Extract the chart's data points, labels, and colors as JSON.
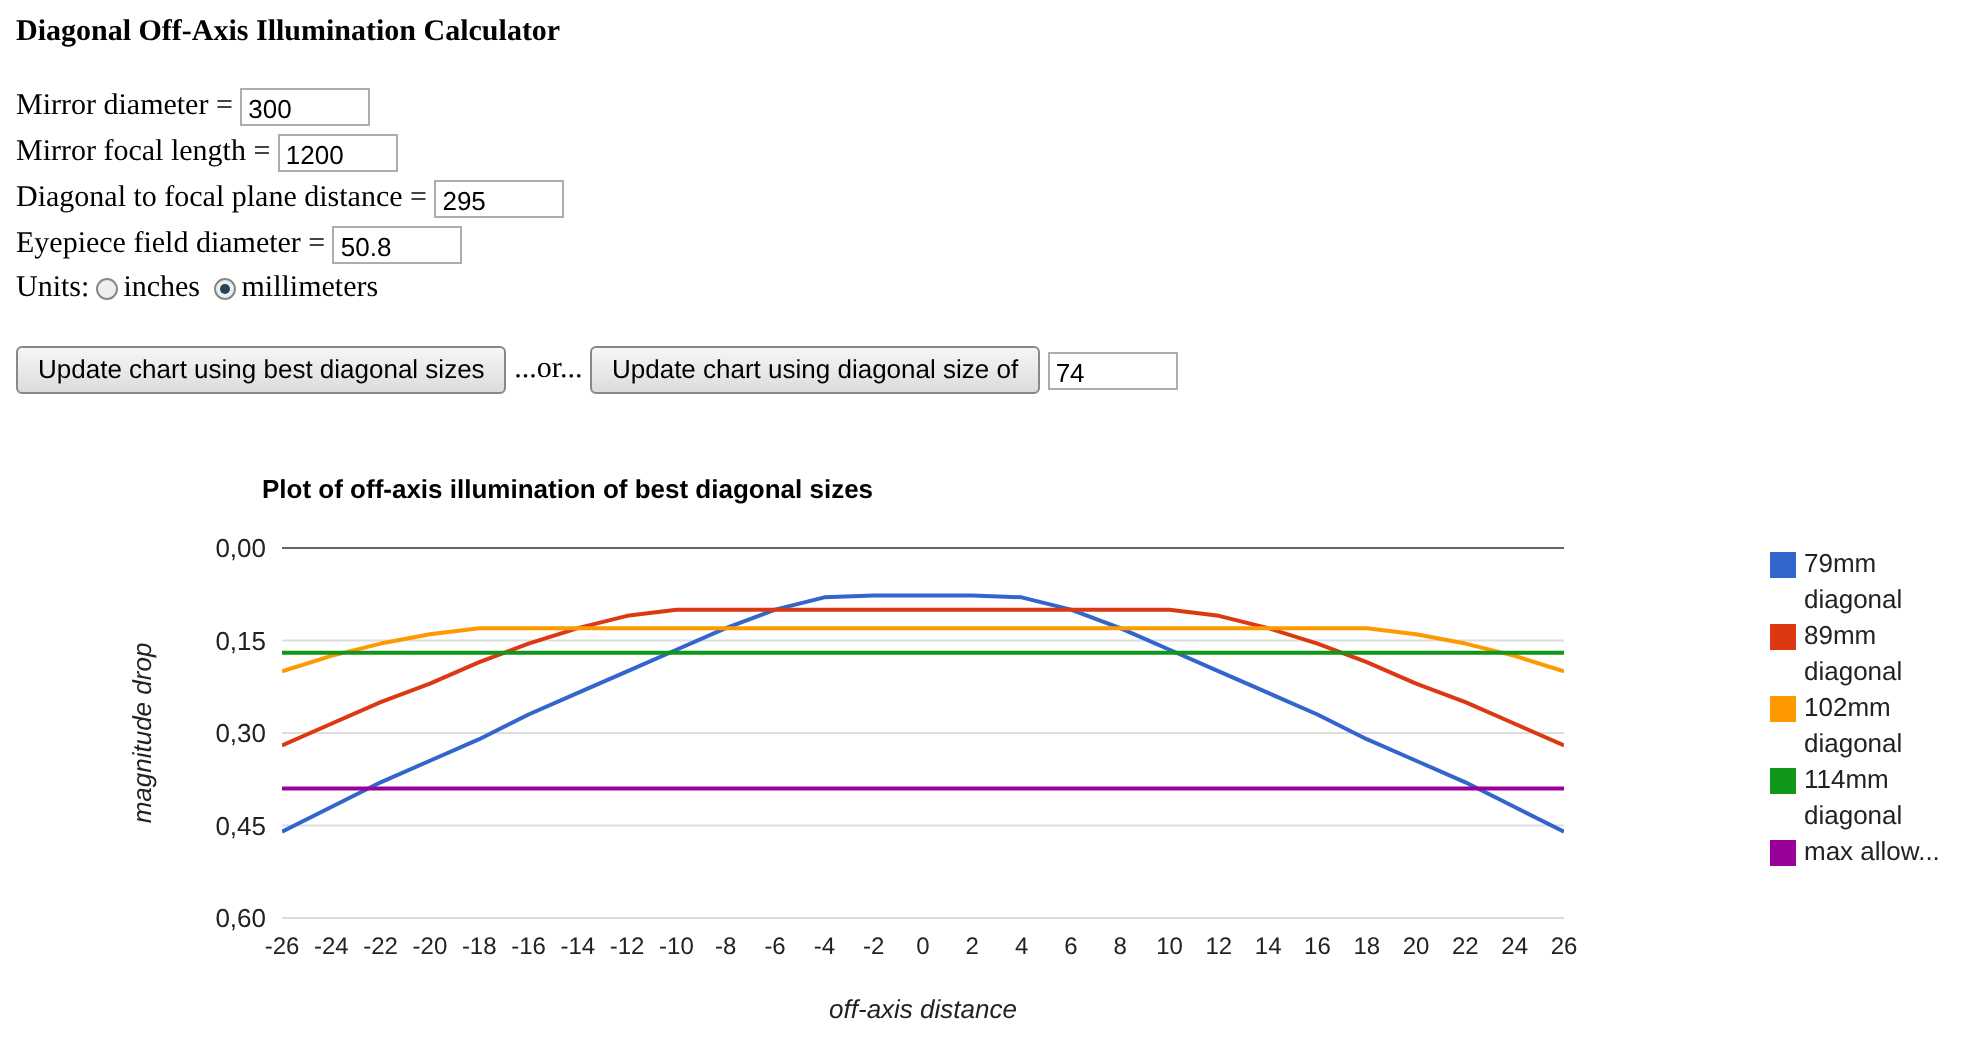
{
  "chart_data": {
    "type": "line",
    "title": "Plot of off-axis illumination of best diagonal sizes",
    "xlabel": "off-axis distance",
    "ylabel": "magnitude drop",
    "annotations": [
      "Diagonal Off-Axis Illumination Calculator",
      "Mirror diameter =",
      "300",
      "Mirror focal length =",
      "1200",
      "Diagonal to focal plane distance =",
      "295",
      "Eyepiece field diameter =",
      "50.8",
      "Units:",
      "inches",
      "millimeters",
      "Update chart using best diagonal sizes",
      "...or...",
      "Update chart using diagonal size of",
      "74"
    ],
    "x": [
      -26,
      -24,
      -22,
      -20,
      -18,
      -16,
      -14,
      -12,
      -10,
      -8,
      -6,
      -4,
      -2,
      0,
      2,
      4,
      6,
      8,
      10,
      12,
      14,
      16,
      18,
      20,
      22,
      24,
      26
    ],
    "series": [
      {
        "name": "79mm diagonal",
        "color": "#3366cc",
        "values": [
          0.46,
          0.42,
          0.38,
          0.345,
          0.31,
          0.27,
          0.235,
          0.2,
          0.165,
          0.13,
          0.1,
          0.08,
          0.077,
          0.077,
          0.077,
          0.08,
          0.1,
          0.13,
          0.165,
          0.2,
          0.235,
          0.27,
          0.31,
          0.345,
          0.38,
          0.42,
          0.46
        ]
      },
      {
        "name": "89mm diagonal",
        "color": "#dc3912",
        "values": [
          0.32,
          0.285,
          0.25,
          0.22,
          0.185,
          0.155,
          0.13,
          0.11,
          0.1,
          0.1,
          0.1,
          0.1,
          0.1,
          0.1,
          0.1,
          0.1,
          0.1,
          0.1,
          0.1,
          0.11,
          0.13,
          0.155,
          0.185,
          0.22,
          0.25,
          0.285,
          0.32
        ]
      },
      {
        "name": "102mm diagonal",
        "color": "#ff9900",
        "values": [
          0.2,
          0.175,
          0.155,
          0.14,
          0.13,
          0.13,
          0.13,
          0.13,
          0.13,
          0.13,
          0.13,
          0.13,
          0.13,
          0.13,
          0.13,
          0.13,
          0.13,
          0.13,
          0.13,
          0.13,
          0.13,
          0.13,
          0.13,
          0.14,
          0.155,
          0.175,
          0.2
        ]
      },
      {
        "name": "114mm diagonal",
        "color": "#109618",
        "values": [
          0.17,
          0.17,
          0.17,
          0.17,
          0.17,
          0.17,
          0.17,
          0.17,
          0.17,
          0.17,
          0.17,
          0.17,
          0.17,
          0.17,
          0.17,
          0.17,
          0.17,
          0.17,
          0.17,
          0.17,
          0.17,
          0.17,
          0.17,
          0.17,
          0.17,
          0.17,
          0.17
        ]
      },
      {
        "name": "max allow...",
        "color": "#990099",
        "values": [
          0.39,
          0.39,
          0.39,
          0.39,
          0.39,
          0.39,
          0.39,
          0.39,
          0.39,
          0.39,
          0.39,
          0.39,
          0.39,
          0.39,
          0.39,
          0.39,
          0.39,
          0.39,
          0.39,
          0.39,
          0.39,
          0.39,
          0.39,
          0.39,
          0.39,
          0.39,
          0.39
        ]
      }
    ],
    "xlim": [
      -26,
      26
    ],
    "xticks": [
      -26,
      -24,
      -22,
      -20,
      -18,
      -16,
      -14,
      -12,
      -10,
      -8,
      -6,
      -4,
      -2,
      0,
      2,
      4,
      6,
      8,
      10,
      12,
      14,
      16,
      18,
      20,
      22,
      24,
      26
    ],
    "ylim": [
      0.6,
      0
    ],
    "yticks": [
      {
        "value": 0,
        "label": "0,00"
      },
      {
        "value": 0.15,
        "label": "0,15"
      },
      {
        "value": 0.3,
        "label": "0,30"
      },
      {
        "value": 0.45,
        "label": "0,45"
      },
      {
        "value": 0.6,
        "label": "0,60"
      }
    ],
    "grid": "y",
    "legend": "right",
    "marker": "none",
    "line_style": "solid"
  }
}
